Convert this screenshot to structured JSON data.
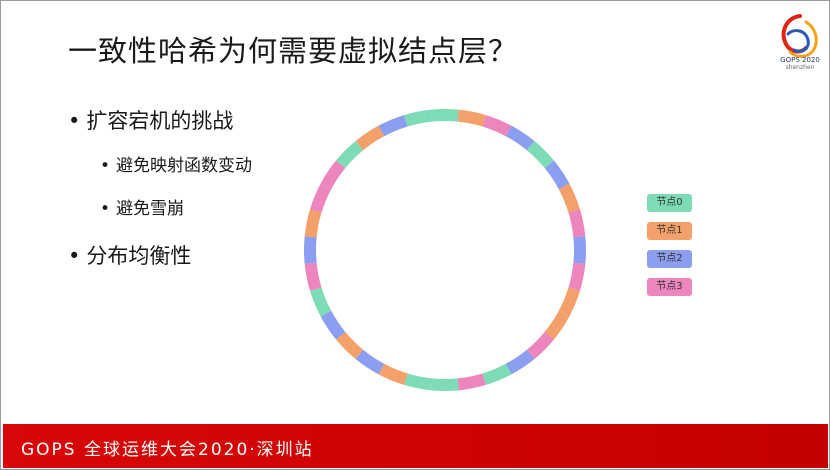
{
  "slide": {
    "title": "一致性哈希为何需要虚拟结点层？",
    "bullets": [
      {
        "level": 1,
        "text": "扩容宕机的挑战"
      },
      {
        "level": 2,
        "text": "避免映射函数变动"
      },
      {
        "level": 2,
        "text": "避免雪崩"
      },
      {
        "level": 1,
        "text": "分布均衡性"
      }
    ],
    "bullet_symbol": "•"
  },
  "logo": {
    "text": "GOPS 2020",
    "subtext": "shenzhen"
  },
  "legend": [
    {
      "label": "节点0",
      "color": "#7ddcb5"
    },
    {
      "label": "节点1",
      "color": "#f4a06b"
    },
    {
      "label": "节点2",
      "color": "#8c9ef0"
    },
    {
      "label": "节点3",
      "color": "#ec86bd"
    }
  ],
  "ring": {
    "segments": [
      0,
      1,
      3,
      2,
      0,
      2,
      1,
      3,
      2,
      3,
      1,
      1,
      3,
      2,
      0,
      3,
      0,
      0,
      1,
      2,
      1,
      2,
      0,
      3,
      2,
      1,
      3,
      3,
      0,
      1,
      2,
      0
    ]
  },
  "footer": {
    "text": "GOPS 全球运维大会2020·深圳站",
    "color": "#cc0000"
  }
}
